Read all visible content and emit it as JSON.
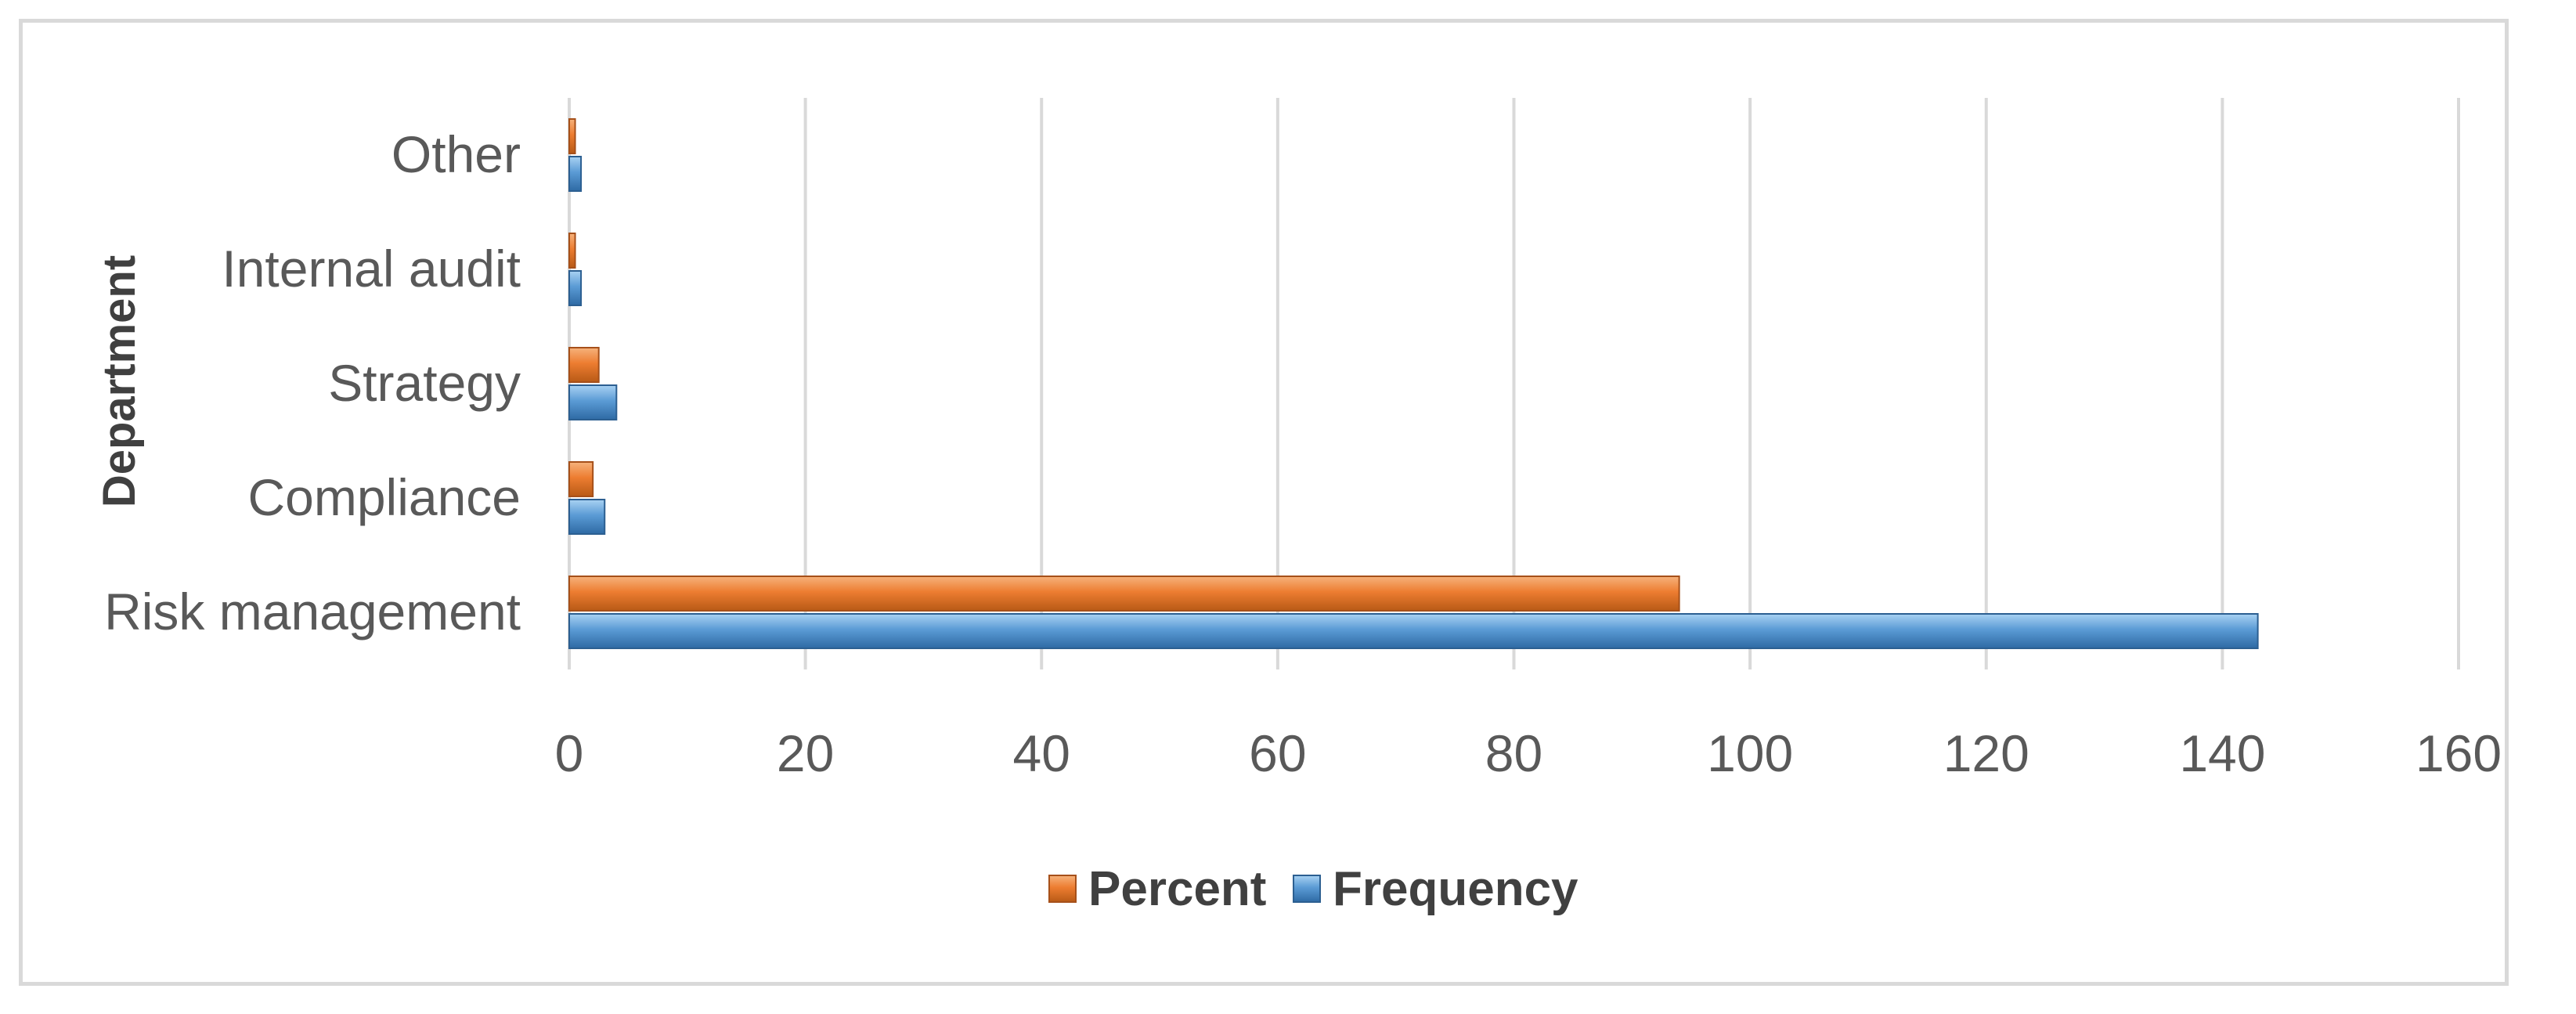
{
  "chart_data": {
    "type": "bar",
    "orientation": "horizontal",
    "title": "",
    "xlabel": "",
    "ylabel": "Department",
    "categories": [
      "Risk management",
      "Compliance",
      "Strategy",
      "Internal audit",
      "Other"
    ],
    "series": [
      {
        "name": "Percent",
        "values": [
          94,
          2,
          2.5,
          0.5,
          0.5
        ],
        "color": "#ed7d31"
      },
      {
        "name": "Frequency",
        "values": [
          143,
          3,
          4,
          1,
          1
        ],
        "color": "#5b9bd5"
      }
    ],
    "xlim": [
      0,
      160
    ],
    "xticks": [
      "0",
      "20",
      "40",
      "60",
      "80",
      "100",
      "120",
      "140",
      "160"
    ],
    "grid": true,
    "legend_position": "bottom"
  }
}
